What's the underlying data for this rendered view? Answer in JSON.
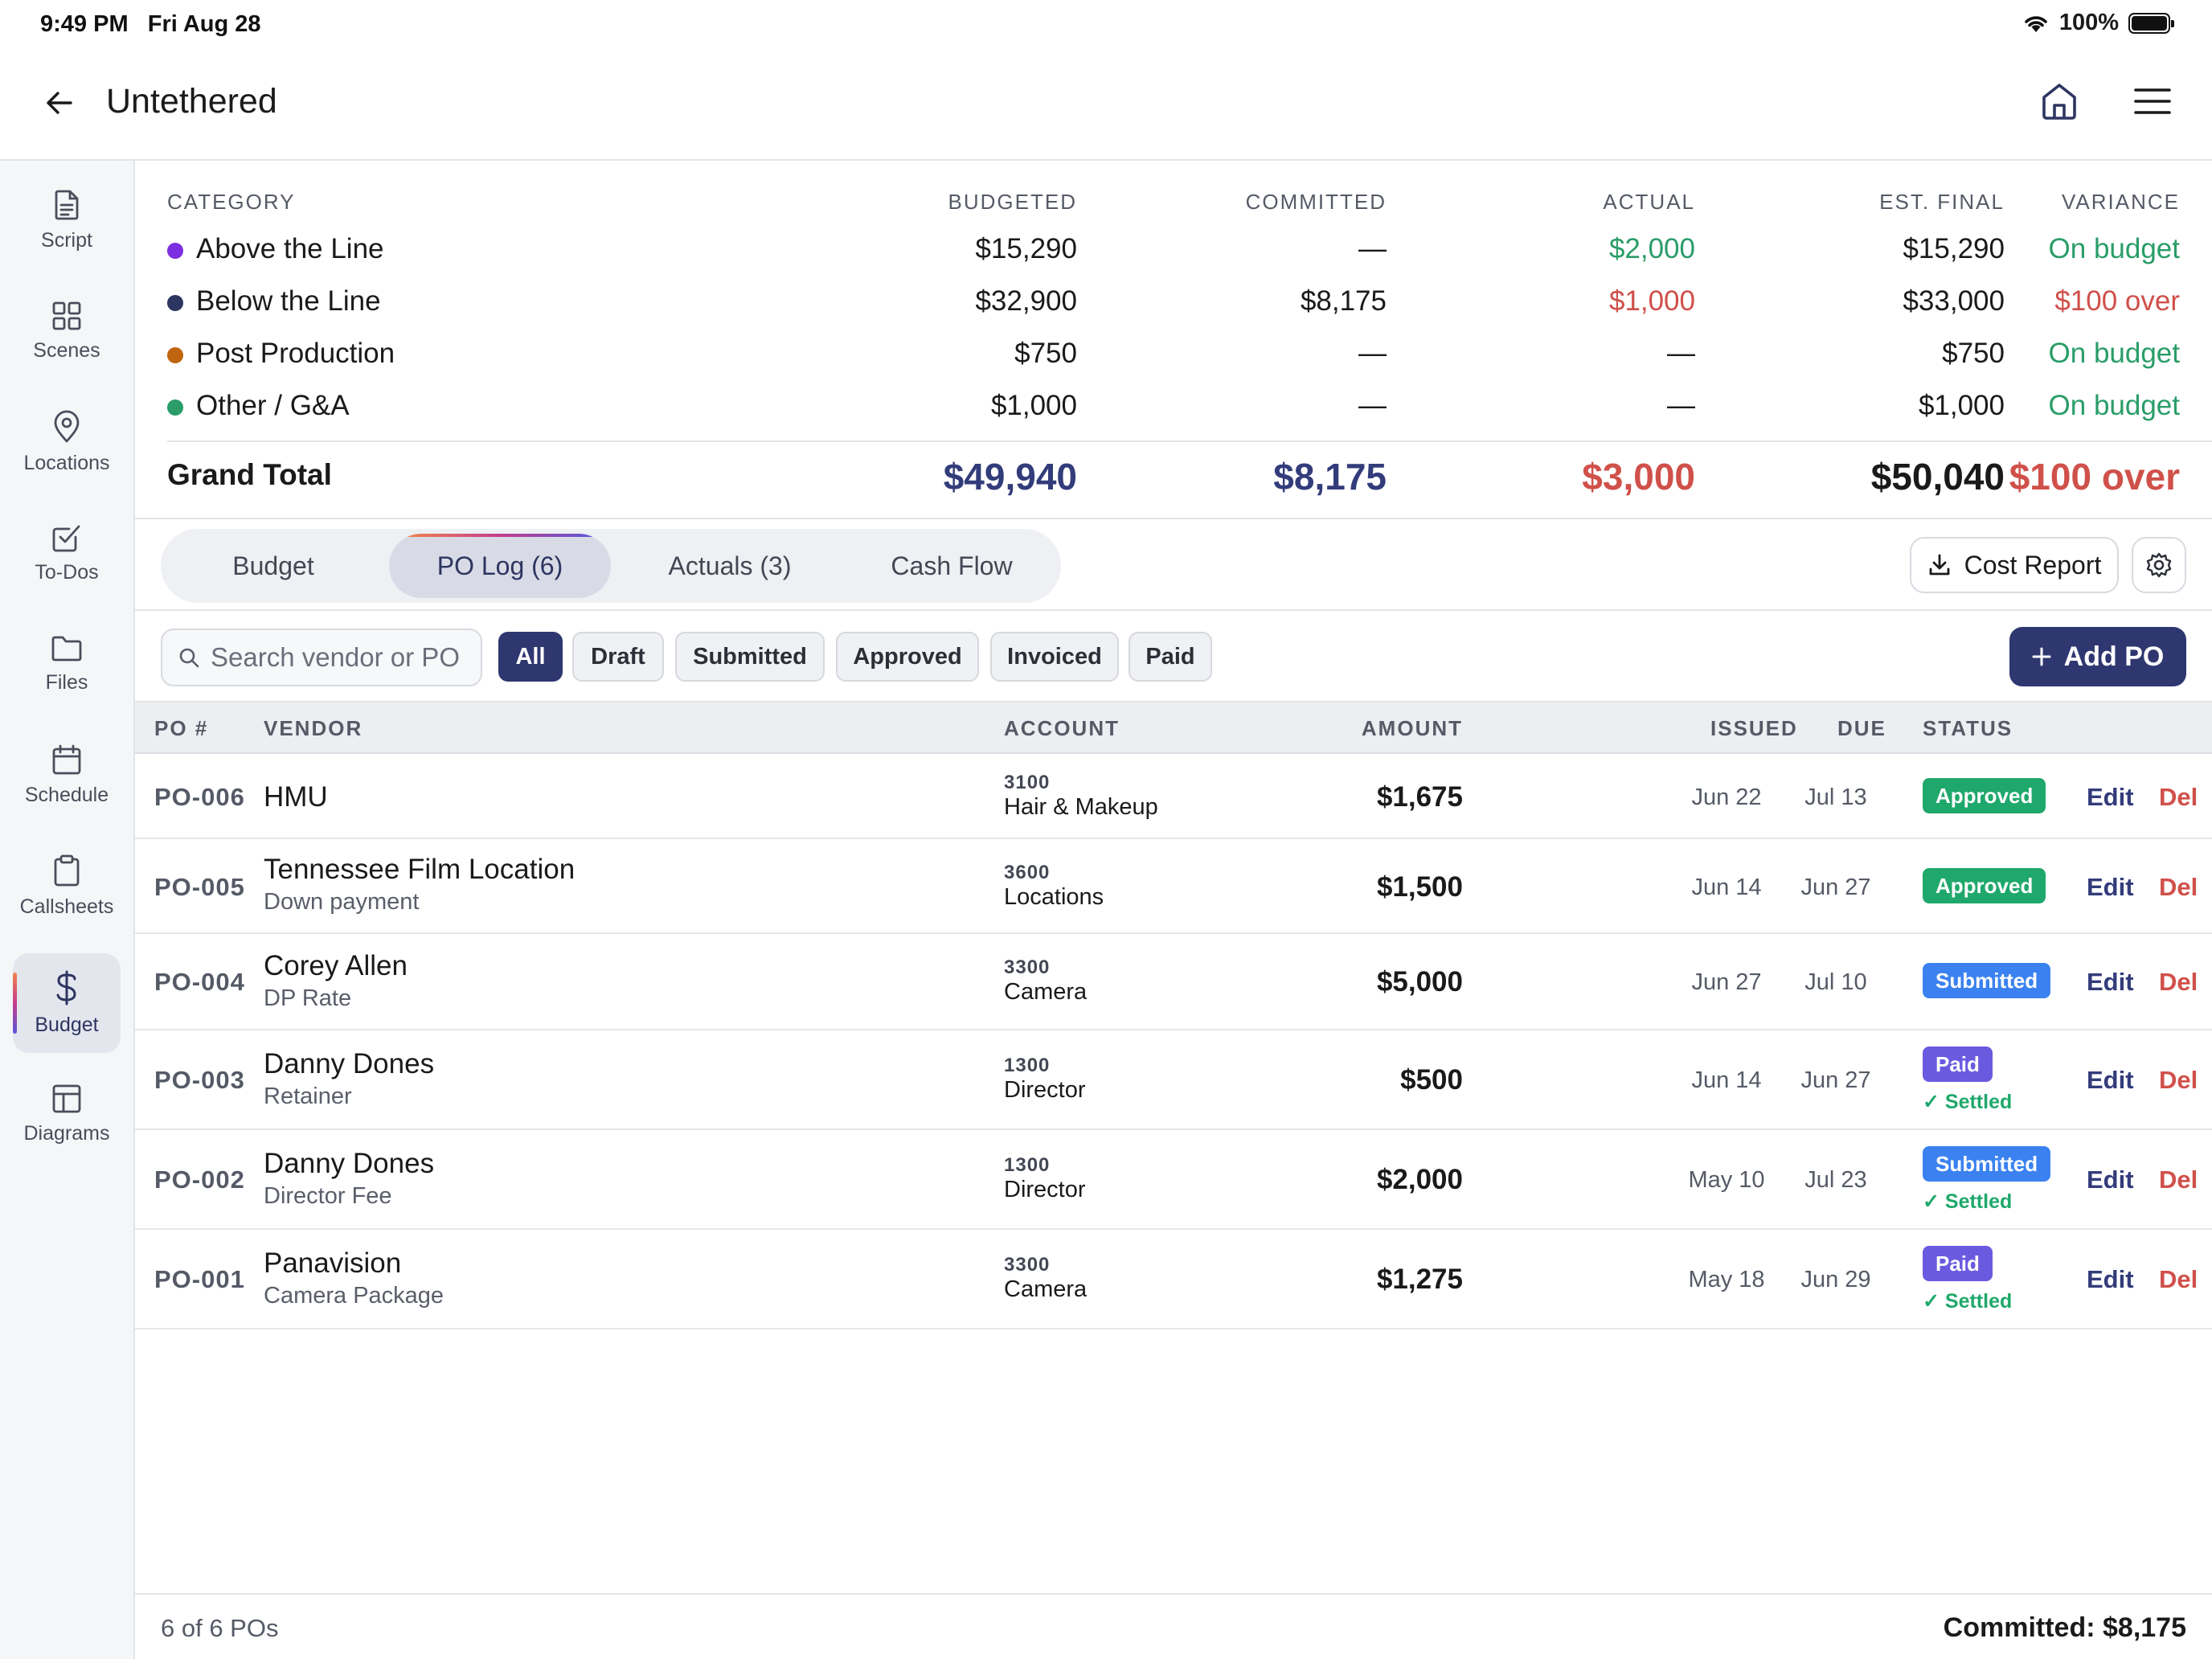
{
  "status_bar": {
    "time": "9:49 PM",
    "date": "Fri Aug 28",
    "battery": "100%"
  },
  "header": {
    "title": "Untethered"
  },
  "sidebar": {
    "items": [
      {
        "label": "Script",
        "icon": "document-icon"
      },
      {
        "label": "Scenes",
        "icon": "grid-icon"
      },
      {
        "label": "Locations",
        "icon": "map-pin-icon"
      },
      {
        "label": "To-Dos",
        "icon": "checkbox-icon"
      },
      {
        "label": "Files",
        "icon": "folder-icon"
      },
      {
        "label": "Schedule",
        "icon": "calendar-icon"
      },
      {
        "label": "Callsheets",
        "icon": "clipboard-icon"
      },
      {
        "label": "Budget",
        "icon": "dollar-icon",
        "active": true
      },
      {
        "label": "Diagrams",
        "icon": "layout-icon"
      }
    ]
  },
  "summary": {
    "headers": {
      "category": "CATEGORY",
      "budgeted": "BUDGETED",
      "committed": "COMMITTED",
      "actual": "ACTUAL",
      "est_final": "EST. FINAL",
      "variance": "VARIANCE"
    },
    "rows": [
      {
        "category": "Above the Line",
        "dot_color": "#7b2fe0",
        "budgeted": "$15,290",
        "committed": "—",
        "actual": "$2,000",
        "est_final": "$15,290",
        "variance": "On budget"
      },
      {
        "category": "Below the Line",
        "dot_color": "#2d3561",
        "budgeted": "$32,900",
        "committed": "$8,175",
        "actual": "$1,000",
        "est_final": "$33,000",
        "variance": "$100 over"
      },
      {
        "category": "Post Production",
        "dot_color": "#c0650f",
        "budgeted": "$750",
        "committed": "—",
        "actual": "—",
        "est_final": "$750",
        "variance": "On budget"
      },
      {
        "category": "Other / G&A",
        "dot_color": "#2a9d68",
        "budgeted": "$1,000",
        "committed": "—",
        "actual": "—",
        "est_final": "$1,000",
        "variance": "On budget"
      }
    ],
    "total": {
      "label": "Grand Total",
      "budgeted": "$49,940",
      "committed": "$8,175",
      "actual": "$3,000",
      "est_final": "$50,040",
      "variance": "$100 over"
    }
  },
  "tabs": [
    {
      "label": "Budget"
    },
    {
      "label": "PO Log (6)",
      "active": true
    },
    {
      "label": "Actuals (3)"
    },
    {
      "label": "Cash Flow"
    }
  ],
  "toolbar": {
    "cost_report_label": "Cost Report"
  },
  "filters": {
    "search_placeholder": "Search vendor or PO",
    "chips": [
      "All",
      "Draft",
      "Submitted",
      "Approved",
      "Invoiced",
      "Paid"
    ],
    "active_chip": "All",
    "add_label": "Add PO"
  },
  "po_table": {
    "headers": {
      "po": "PO #",
      "vendor": "VENDOR",
      "account": "ACCOUNT",
      "amount": "AMOUNT",
      "issued": "ISSUED",
      "due": "DUE",
      "status": "STATUS"
    },
    "edit_label": "Edit",
    "delete_label": "Del",
    "settled_label": "✓ Settled",
    "rows": [
      {
        "po": "PO-006",
        "vendor": "HMU",
        "description": "",
        "account_code": "3100",
        "account_name": "Hair & Makeup",
        "amount": "$1,675",
        "issued": "Jun 22",
        "due": "Jul 13",
        "status": "Approved",
        "settled": false
      },
      {
        "po": "PO-005",
        "vendor": "Tennessee Film Location",
        "description": "Down payment",
        "account_code": "3600",
        "account_name": "Locations",
        "amount": "$1,500",
        "issued": "Jun 14",
        "due": "Jun 27",
        "status": "Approved",
        "settled": false
      },
      {
        "po": "PO-004",
        "vendor": "Corey Allen",
        "description": "DP Rate",
        "account_code": "3300",
        "account_name": "Camera",
        "amount": "$5,000",
        "issued": "Jun 27",
        "due": "Jul 10",
        "status": "Submitted",
        "settled": false
      },
      {
        "po": "PO-003",
        "vendor": "Danny Dones",
        "description": "Retainer",
        "account_code": "1300",
        "account_name": "Director",
        "amount": "$500",
        "issued": "Jun 14",
        "due": "Jun 27",
        "status": "Paid",
        "settled": true
      },
      {
        "po": "PO-002",
        "vendor": "Danny Dones",
        "description": "Director Fee",
        "account_code": "1300",
        "account_name": "Director",
        "amount": "$2,000",
        "issued": "May 10",
        "due": "Jul 23",
        "status": "Submitted",
        "settled": true
      },
      {
        "po": "PO-001",
        "vendor": "Panavision",
        "description": "Camera Package",
        "account_code": "3300",
        "account_name": "Camera",
        "amount": "$1,275",
        "issued": "May 18",
        "due": "Jun 29",
        "status": "Paid",
        "settled": true
      }
    ]
  },
  "footer": {
    "count": "6 of 6 POs",
    "committed": "Committed: $8,175"
  }
}
